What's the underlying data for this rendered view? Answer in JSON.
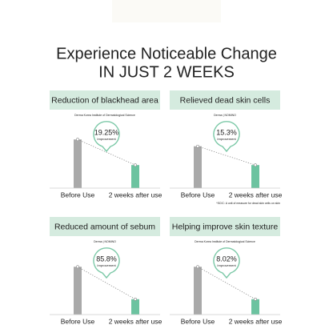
{
  "header": {
    "title": "Experience Noticeable Change",
    "subtitle": "IN JUST 2 WEEKS"
  },
  "chart_data": [
    {
      "type": "bar",
      "title": "Reduction of blackhead area",
      "source": "Derma Korea Institute of Dermatological Science",
      "categories": [
        "Before Use",
        "2 weeks after use"
      ],
      "values": [
        57,
        27
      ],
      "colors": [
        "#a9a9a9",
        "#6cc3a0"
      ],
      "ylim": [
        0,
        60
      ],
      "badge": "19.25%",
      "badge_caption": "Improvement"
    },
    {
      "type": "bar",
      "title": "Relieved dead skin cells",
      "source": "Derma | NOMINO",
      "categories": [
        "Before Use",
        "2 weeks after use"
      ],
      "values": [
        49,
        27
      ],
      "colors": [
        "#a9a9a9",
        "#6cc3a0"
      ],
      "ylim": [
        0,
        60
      ],
      "badge": "15.3%",
      "badge_caption": "Improvement",
      "footnote": "*SCIC: A unit of measure for dead skin cells on skin"
    },
    {
      "type": "bar",
      "title": "Reduced amount of sebum",
      "source": "Derma | NOMINO",
      "categories": [
        "Before Use",
        "2 weeks after use"
      ],
      "values": [
        56,
        18
      ],
      "colors": [
        "#a9a9a9",
        "#6cc3a0"
      ],
      "ylim": [
        0,
        60
      ],
      "badge": "85.8%",
      "badge_caption": "Improvement"
    },
    {
      "type": "bar",
      "title": "Helping improve skin texture",
      "source": "Derma Korea Institute of Dermatological Science",
      "categories": [
        "Before Use",
        "2 weeks after use"
      ],
      "values": [
        56,
        18
      ],
      "colors": [
        "#a9a9a9",
        "#6cc3a0"
      ],
      "ylim": [
        0,
        60
      ],
      "badge": "8.02%",
      "badge_caption": "Improvement"
    }
  ]
}
